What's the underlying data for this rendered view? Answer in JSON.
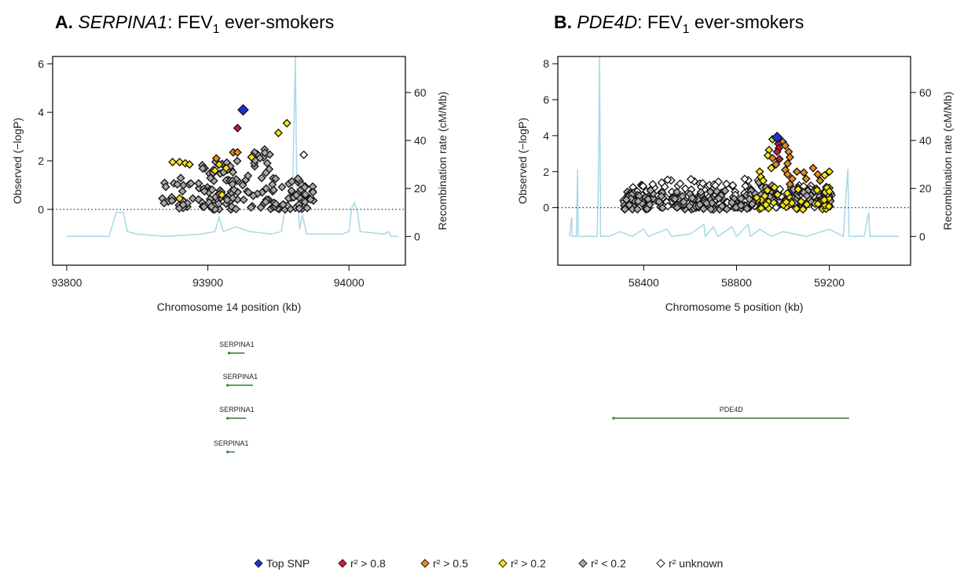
{
  "legend": {
    "colors": {
      "top": "#1f2fd6",
      "r08": "#d7153a",
      "r05": "#e88a18",
      "r02": "#f5e50f",
      "rlow": "#a8a8a8",
      "unknown": "#ffffff"
    },
    "items": [
      {
        "key": "top",
        "label": "Top SNP"
      },
      {
        "key": "r08",
        "label": "r² > 0.8"
      },
      {
        "key": "r05",
        "label": "r² > 0.5"
      },
      {
        "key": "r02",
        "label": "r² > 0.2"
      },
      {
        "key": "rlow",
        "label": "r² < 0.2"
      },
      {
        "key": "unknown",
        "label": "r² unknown"
      }
    ]
  },
  "recombination_color": "#a9d8e6",
  "gene_color": "#2e7d2e",
  "chart_data": [
    {
      "type": "scatter",
      "panel": "A.",
      "gene_italic": "SERPINA1",
      "title_rest": ": FEV",
      "title_sub": "1",
      "title_tail": " ever-smokers",
      "xlabel": "Chromosome 14 position (kb)",
      "ylabel": "Observed (−logP)",
      "y2label": "Recombination rate (cM/Mb)",
      "xlim": [
        93790,
        94040
      ],
      "ylim": [
        -2.3,
        6.3
      ],
      "y2lim": [
        -12,
        75
      ],
      "xticks": [
        93800,
        93900,
        94000
      ],
      "yticks": [
        0,
        2,
        4,
        6
      ],
      "y2ticks": [
        0,
        20,
        40,
        60
      ],
      "significance_line": 0,
      "top_snp": {
        "x": 93925,
        "y": 4.1
      },
      "r08": [
        [
          93921,
          3.35
        ]
      ],
      "r05": [
        [
          93918,
          2.35
        ],
        [
          93921,
          2.35
        ],
        [
          93906,
          2.1
        ]
      ],
      "r02": [
        [
          93875,
          1.95
        ],
        [
          93880,
          1.95
        ],
        [
          93884,
          1.9
        ],
        [
          93887,
          1.85
        ],
        [
          93880,
          0.45
        ],
        [
          93908,
          1.85
        ],
        [
          93905,
          1.6
        ],
        [
          93913,
          1.7
        ],
        [
          93931,
          2.15
        ],
        [
          93950,
          3.15
        ],
        [
          93956,
          3.55
        ],
        [
          93910,
          0.6
        ]
      ],
      "unknown": [
        [
          93968,
          2.25
        ]
      ],
      "rlow_clusters": [
        {
          "x": [
            93865,
            93890
          ],
          "y": [
            0.0,
            1.3
          ],
          "n": 28
        },
        {
          "x": [
            93893,
            93928
          ],
          "y": [
            0.0,
            2.0
          ],
          "n": 75
        },
        {
          "x": [
            93928,
            93945
          ],
          "y": [
            0.0,
            2.5
          ],
          "n": 30
        },
        {
          "x": [
            93945,
            93975
          ],
          "y": [
            0.0,
            1.3
          ],
          "n": 55
        }
      ],
      "recomb": [
        [
          93800,
          0
        ],
        [
          93830,
          0
        ],
        [
          93832,
          4
        ],
        [
          93835,
          10
        ],
        [
          93840,
          10
        ],
        [
          93843,
          2
        ],
        [
          93850,
          1
        ],
        [
          93870,
          0
        ],
        [
          93895,
          1
        ],
        [
          93905,
          2
        ],
        [
          93908,
          8
        ],
        [
          93911,
          2
        ],
        [
          93920,
          4
        ],
        [
          93930,
          2
        ],
        [
          93945,
          1
        ],
        [
          93952,
          2
        ],
        [
          93955,
          12
        ],
        [
          93958,
          14
        ],
        [
          93960,
          16
        ],
        [
          93962,
          75
        ],
        [
          93963,
          22
        ],
        [
          93965,
          3
        ],
        [
          93967,
          9
        ],
        [
          93970,
          1
        ],
        [
          93995,
          1
        ],
        [
          94000,
          2
        ],
        [
          94002,
          12
        ],
        [
          94004,
          14
        ],
        [
          94006,
          10
        ],
        [
          94008,
          2
        ],
        [
          94025,
          1
        ],
        [
          94028,
          2
        ],
        [
          94030,
          0
        ],
        [
          94035,
          0
        ]
      ],
      "genes": [
        {
          "label": "SERPINA1",
          "start": 93915,
          "end": 93926,
          "row": 0
        },
        {
          "label": "SERPINA1",
          "start": 93914,
          "end": 93932,
          "row": 1
        },
        {
          "label": "SERPINA1",
          "start": 93914,
          "end": 93927,
          "row": 2
        },
        {
          "label": "SERPINA1",
          "start": 93914,
          "end": 93919,
          "row": 3
        }
      ]
    },
    {
      "type": "scatter",
      "panel": "B.",
      "gene_italic": "PDE4D",
      "title_rest": ": FEV",
      "title_sub": "1",
      "title_tail": " ever-smokers",
      "xlabel": "Chromosome 5 position (kb)",
      "ylabel": "Observed (−logP)",
      "y2label": "Recombination rate (cM/Mb)",
      "xlim": [
        58030,
        59550
      ],
      "ylim": [
        -3.2,
        8.4
      ],
      "y2lim": [
        -12,
        75
      ],
      "xticks": [
        58400,
        58800,
        59200
      ],
      "yticks": [
        0,
        2,
        4,
        6,
        8
      ],
      "y2ticks": [
        0,
        20,
        40,
        60
      ],
      "significance_line": 0,
      "top_snp": {
        "x": 58975,
        "y": 3.9
      },
      "r08": [
        [
          58980,
          3.55
        ],
        [
          58982,
          3.3
        ],
        [
          58975,
          3.1
        ],
        [
          58985,
          2.7
        ]
      ],
      "r05": [
        [
          59000,
          3.65
        ],
        [
          59010,
          3.45
        ],
        [
          59025,
          3.1
        ],
        [
          59030,
          2.8
        ],
        [
          59020,
          2.45
        ],
        [
          58955,
          2.75
        ],
        [
          58970,
          2.4
        ],
        [
          59010,
          2.1
        ],
        [
          59020,
          1.85
        ],
        [
          59040,
          1.6
        ],
        [
          59060,
          2.0
        ],
        [
          59090,
          1.95
        ],
        [
          59100,
          1.6
        ],
        [
          59130,
          2.2
        ],
        [
          59150,
          1.85
        ],
        [
          59160,
          1.5
        ],
        [
          59030,
          1.3
        ]
      ],
      "r02": [
        [
          58955,
          3.8
        ],
        [
          58940,
          3.2
        ],
        [
          58935,
          2.9
        ],
        [
          58950,
          2.2
        ],
        [
          58900,
          2.0
        ],
        [
          58905,
          1.7
        ],
        [
          58915,
          1.5
        ],
        [
          59200,
          2.0
        ],
        [
          59180,
          1.8
        ],
        [
          59190,
          1.1
        ],
        [
          59200,
          0.9
        ]
      ],
      "unknown": [],
      "rlow_clusters": [
        {
          "x": [
            58310,
            58880
          ],
          "y": [
            -0.1,
            1.0
          ],
          "n": 120
        },
        {
          "x": [
            58880,
            58960
          ],
          "y": [
            0.2,
            1.5
          ],
          "n": 20
        },
        {
          "x": [
            59040,
            59215
          ],
          "y": [
            0.2,
            1.1
          ],
          "n": 30
        }
      ],
      "unknown_clusters": [
        {
          "x": [
            58310,
            58900
          ],
          "y": [
            0.0,
            1.6
          ],
          "n": 110
        },
        {
          "x": [
            58900,
            59215
          ],
          "y": [
            0.0,
            1.3
          ],
          "n": 70
        }
      ],
      "r02_clusters": [
        {
          "x": [
            58880,
            59210
          ],
          "y": [
            -0.1,
            1.2
          ],
          "n": 45
        }
      ],
      "recomb": [
        [
          58080,
          0
        ],
        [
          58090,
          8
        ],
        [
          58092,
          0
        ],
        [
          58110,
          0
        ],
        [
          58115,
          28
        ],
        [
          58118,
          0
        ],
        [
          58200,
          0
        ],
        [
          58205,
          25
        ],
        [
          58210,
          75
        ],
        [
          58214,
          0
        ],
        [
          58250,
          0
        ],
        [
          58300,
          2
        ],
        [
          58350,
          0
        ],
        [
          58400,
          3
        ],
        [
          58420,
          0
        ],
        [
          58500,
          3
        ],
        [
          58520,
          0
        ],
        [
          58600,
          1
        ],
        [
          58660,
          5
        ],
        [
          58665,
          0
        ],
        [
          58700,
          4
        ],
        [
          58720,
          0
        ],
        [
          58780,
          4
        ],
        [
          58800,
          0
        ],
        [
          58850,
          5
        ],
        [
          58860,
          0
        ],
        [
          58900,
          3
        ],
        [
          58950,
          0
        ],
        [
          59000,
          2
        ],
        [
          59100,
          0
        ],
        [
          59200,
          3
        ],
        [
          59260,
          0
        ],
        [
          59280,
          28
        ],
        [
          59285,
          0
        ],
        [
          59350,
          0
        ],
        [
          59370,
          10
        ],
        [
          59375,
          0
        ],
        [
          59500,
          0
        ]
      ],
      "genes": [
        {
          "label": "PDE4D",
          "start": 58270,
          "end": 59285,
          "row": 2
        }
      ]
    }
  ]
}
